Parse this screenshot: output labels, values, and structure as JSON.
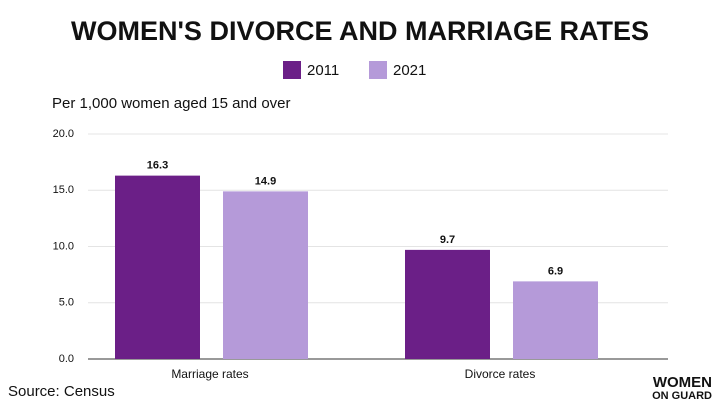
{
  "chart_data": {
    "type": "bar",
    "title": "WOMEN'S DIVORCE AND MARRIAGE RATES",
    "y_label": "Per 1,000 women aged 15 and over",
    "categories": [
      "Marriage rates",
      "Divorce rates"
    ],
    "series": [
      {
        "name": "2011",
        "color": "#6b1f87",
        "values": [
          16.3,
          9.7
        ]
      },
      {
        "name": "2021",
        "color": "#b59ad9",
        "values": [
          14.9,
          6.9
        ]
      }
    ],
    "ylim": [
      0,
      20
    ],
    "yticks": [
      {
        "value": 0,
        "label": "0.0"
      },
      {
        "value": 5,
        "label": "5.0"
      },
      {
        "value": 10,
        "label": "10.0"
      },
      {
        "value": 15,
        "label": "15.0"
      },
      {
        "value": 20,
        "label": "20.0"
      }
    ],
    "grid": true,
    "legend": "top"
  },
  "source": "Source: Census",
  "logo": [
    "WOMEN",
    "ON GUARD"
  ]
}
